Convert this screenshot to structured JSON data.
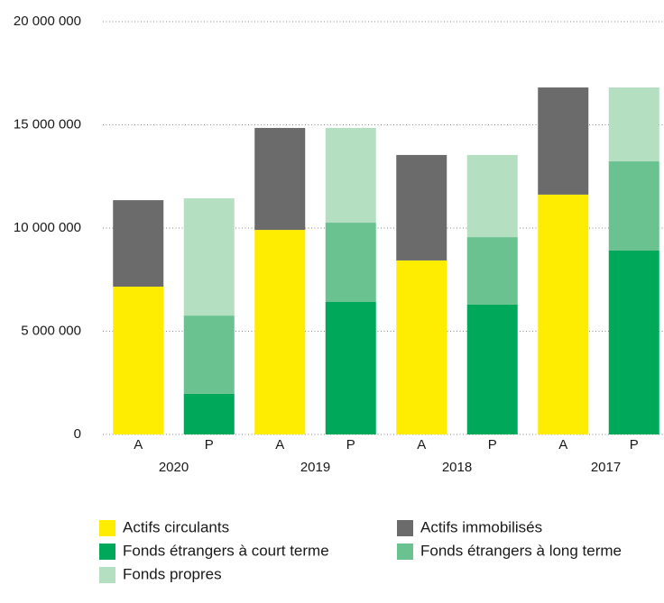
{
  "chart_data": {
    "type": "stacked_bar",
    "categories": [
      "A",
      "P",
      "A",
      "P",
      "A",
      "P",
      "A",
      "P"
    ],
    "groups": [
      "2020",
      "2019",
      "2018",
      "2017"
    ],
    "series": [
      {
        "name": "Actifs circulants",
        "color": "#ffed00",
        "values": [
          7160000,
          null,
          9910000,
          null,
          8430000,
          null,
          11620000,
          null
        ]
      },
      {
        "name": "Actifs immobilisés",
        "color": "#6b6b6b",
        "values": [
          4190000,
          null,
          4940000,
          null,
          5110000,
          null,
          5190000,
          null
        ]
      },
      {
        "name": "Fonds étrangers à court terme",
        "color": "#00a859",
        "values": [
          null,
          1970000,
          null,
          6420000,
          null,
          6290000,
          null,
          8910000
        ]
      },
      {
        "name": "Fonds étrangers à long terme",
        "color": "#69c28f",
        "values": [
          null,
          3790000,
          null,
          3840000,
          null,
          3270000,
          null,
          4320000
        ]
      },
      {
        "name": "Fonds propres",
        "color": "#b5dfc1",
        "values": [
          null,
          5680000,
          null,
          4590000,
          null,
          3980000,
          null,
          3580000
        ]
      }
    ],
    "ylim": [
      0,
      20000000
    ],
    "yticks": [
      0,
      {
        "value": 5000000,
        "label": "5 000 000"
      },
      {
        "value": 10000000,
        "label": "10 000 000"
      },
      {
        "value": 15000000,
        "label": "15 000 000"
      },
      {
        "value": 20000000,
        "label": "20 000 000"
      }
    ],
    "grid": true
  }
}
